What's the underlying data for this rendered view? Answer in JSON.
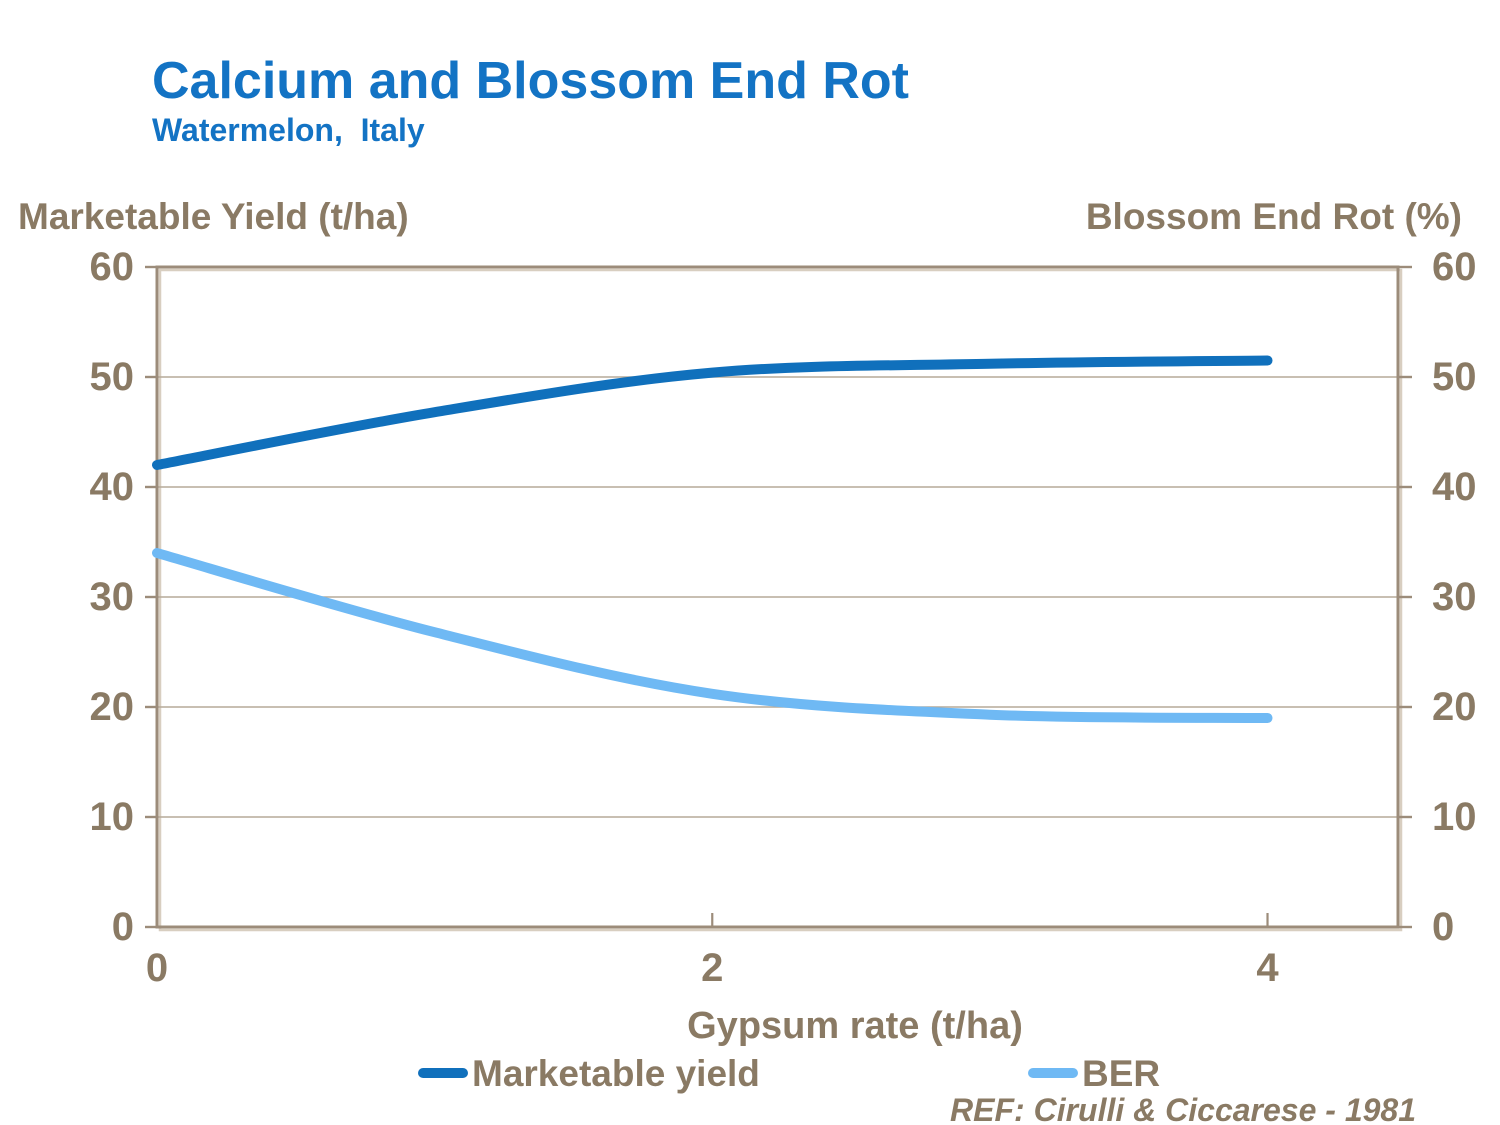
{
  "header": {
    "title": "Calcium and Blossom End Rot",
    "subtitle": "Watermelon,  Italy"
  },
  "chart_data": {
    "type": "line",
    "x": [
      0,
      1,
      2,
      3,
      4
    ],
    "series": [
      {
        "name": "Marketable yield",
        "axis": "left",
        "color": "#1070BC",
        "values": [
          42,
          46.8,
          50.4,
          51.2,
          51.5
        ]
      },
      {
        "name": "BER",
        "axis": "right",
        "color": "#6FB9F4",
        "values": [
          34,
          26.8,
          21.2,
          19.3,
          19
        ]
      }
    ],
    "title": "Calcium and Blossom End Rot",
    "subtitle": "Watermelon,  Italy",
    "xlabel": "Gypsum rate (t/ha)",
    "ylabel_left": "Marketable Yield (t/ha)",
    "ylabel_right": "Blossom End Rot (%)",
    "xlim": [
      0,
      4.47
    ],
    "ylim": [
      0,
      60
    ],
    "x_ticks": [
      0,
      2,
      4
    ],
    "y_ticks": [
      0,
      10,
      20,
      30,
      40,
      50,
      60
    ],
    "grid": true,
    "smoothed": true,
    "legend_position": "bottom"
  },
  "axes": {
    "left_title": "Marketable Yield (t/ha)",
    "right_title": "Blossom End Rot (%)",
    "x_title": "Gypsum rate (t/ha)"
  },
  "legend": {
    "items": [
      {
        "label": "Marketable yield",
        "color": "#1070BC"
      },
      {
        "label": "BER",
        "color": "#6FB9F4"
      }
    ]
  },
  "footnote": {
    "ref": "REF: Cirulli & Ciccarese - 1981"
  },
  "colors": {
    "title_blue": "#1373C4",
    "text_taupe": "#8A7A64",
    "frame_dark": "#9C8C7A",
    "frame_light": "#D8CEC0",
    "gridline": "#B6AA99",
    "series_dark_blue": "#1070BC",
    "series_light_blue": "#6FB9F4",
    "background": "#FFFFFF"
  }
}
